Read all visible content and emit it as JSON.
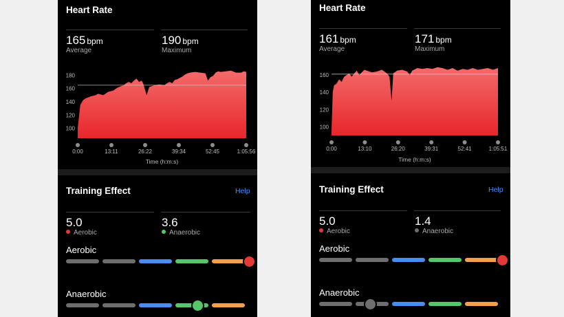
{
  "colors": {
    "gray": "#6e6e6e",
    "blue": "#4a8cf0",
    "green": "#56c66b",
    "orange": "#f2a14a",
    "red": "#e53935",
    "chart_fill": "#f0393c",
    "help": "#4a8cff"
  },
  "screens": [
    {
      "heart_rate": {
        "title": "Heart Rate",
        "average": {
          "value": "165",
          "unit": "bpm",
          "label": "Average"
        },
        "maximum": {
          "value": "190",
          "unit": "bpm",
          "label": "Maximum"
        },
        "x_axis_label": "Time (h:m:s)"
      },
      "training": {
        "title": "Training Effect",
        "help": "Help",
        "aerobic": {
          "value": "5.0",
          "label": "Aerobic",
          "dot_color": "#e53935"
        },
        "anaerobic": {
          "value": "3.6",
          "label": "Anaerobic",
          "dot_color": "#56c66b"
        },
        "aerobic_scale_title": "Aerobic",
        "anaerobic_scale_title": "Anaerobic",
        "aerobic_level": 5.0,
        "anaerobic_level": 3.6
      },
      "chart_data": {
        "type": "area",
        "ylim": [
          85,
          195
        ],
        "y_ticks": [
          "100",
          "120",
          "140",
          "160",
          "180"
        ],
        "x_ticks": [
          "0:00",
          "13:11",
          "26:22",
          "39:34",
          "52:45",
          "1:05:56"
        ],
        "reference_line": 165,
        "xmax": 66,
        "x": [
          0,
          1,
          2,
          3,
          5,
          7,
          8,
          10,
          12,
          14,
          15,
          16,
          18,
          19,
          20,
          21,
          22,
          23,
          24,
          25,
          25.6,
          26.2,
          27,
          28,
          30,
          32,
          34,
          35,
          36,
          37,
          38,
          39,
          40,
          41,
          42,
          43,
          44,
          46,
          48,
          50,
          51,
          52,
          53,
          54,
          55,
          56,
          58,
          60,
          62,
          64,
          65,
          66
        ],
        "values": [
          100,
          135,
          142,
          145,
          148,
          150,
          152,
          150,
          155,
          157,
          160,
          162,
          165,
          168,
          170,
          168,
          172,
          175,
          170,
          172,
          168,
          160,
          150,
          162,
          165,
          166,
          165,
          168,
          170,
          168,
          173,
          174,
          176,
          178,
          181,
          183,
          184,
          185,
          184,
          183,
          172,
          177,
          179,
          184,
          186,
          185,
          186,
          187,
          184,
          184,
          186,
          185
        ]
      }
    },
    {
      "heart_rate": {
        "title": "Heart Rate",
        "average": {
          "value": "161",
          "unit": "bpm",
          "label": "Average"
        },
        "maximum": {
          "value": "171",
          "unit": "bpm",
          "label": "Maximum"
        },
        "x_axis_label": "Time (h:m:s)"
      },
      "training": {
        "title": "Training Effect",
        "help": "Help",
        "aerobic": {
          "value": "5.0",
          "label": "Aerobic",
          "dot_color": "#e53935"
        },
        "anaerobic": {
          "value": "1.4",
          "label": "Anaerobic",
          "dot_color": "#6e6e6e"
        },
        "aerobic_scale_title": "Aerobic",
        "anaerobic_scale_title": "Anaerobic",
        "aerobic_level": 5.0,
        "anaerobic_level": 1.4
      },
      "chart_data": {
        "type": "area",
        "ylim": [
          90,
          172
        ],
        "y_ticks": [
          "100",
          "120",
          "140",
          "160"
        ],
        "x_ticks": [
          "0:00",
          "13:10",
          "26:20",
          "39:31",
          "52:41",
          "1:05:51"
        ],
        "reference_line": 161,
        "xmax": 66,
        "x": [
          0,
          0.5,
          1,
          2,
          3,
          4,
          5,
          6,
          7,
          8,
          9,
          10,
          11,
          12,
          13,
          14,
          16,
          18,
          20,
          22,
          23,
          23.8,
          24.5,
          26,
          28,
          30,
          31,
          32,
          34,
          36,
          38,
          40,
          42,
          44,
          46,
          48,
          50,
          52,
          54,
          56,
          58,
          60,
          62,
          64,
          65,
          66
        ],
        "values": [
          95,
          140,
          148,
          150,
          155,
          152,
          158,
          160,
          162,
          158,
          162,
          165,
          160,
          163,
          166,
          165,
          163,
          164,
          166,
          162,
          158,
          130,
          162,
          165,
          166,
          164,
          160,
          165,
          168,
          167,
          168,
          167,
          169,
          168,
          166,
          168,
          165,
          167,
          166,
          168,
          166,
          167,
          168,
          166,
          167,
          168
        ]
      }
    }
  ]
}
